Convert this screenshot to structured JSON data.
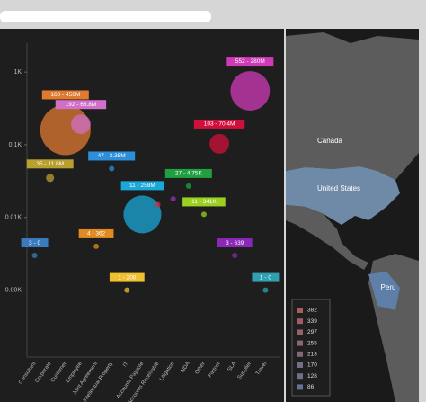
{
  "chart_data": {
    "type": "bubble",
    "categories": [
      "Consultant",
      "Corporate",
      "Customer",
      "Employee",
      "Joint Agreement",
      "Intellectual Property",
      "IT",
      "Accounts Payable",
      "Accounts Receivable",
      "Litigation",
      "NDA",
      "Other",
      "Partner",
      "SLA",
      "Supplier",
      "Travel"
    ],
    "values": [
      3,
      35,
      160,
      192,
      4,
      47,
      1,
      11,
      15,
      18,
      27,
      11,
      103,
      3,
      552,
      1
    ],
    "sizes": [
      0,
      11800000,
      456000000,
      68800000,
      362,
      3350000,
      200,
      258000000,
      500000,
      500000,
      4750,
      341000,
      70400000,
      639,
      280000000,
      0
    ],
    "value_labels": [
      "3 - 0",
      "35 - 11.8M",
      "160 - 456M",
      "192 - 68.8M",
      "4 - 362",
      "47 - 3.35M",
      "1 - 200",
      "11 - 258M",
      null,
      null,
      "27 - 4.75K",
      "11 - 341K",
      "103 - 70.4M",
      "3 - 639",
      "552 - 280M",
      "1 - 0"
    ],
    "colors": [
      "#3a7bbf",
      "#b8a030",
      "#e07a30",
      "#d070c8",
      "#e08a20",
      "#2e8fd8",
      "#f0c030",
      "#1aa8d8",
      "#d03040",
      "#9a30b0",
      "#20a040",
      "#9ad020",
      "#d0103a",
      "#8a28b8",
      "#d03ab8",
      "#30a0b0"
    ],
    "log_y": true,
    "ylim": [
      0.12,
      2500
    ],
    "yticks": [
      {
        "value": 1,
        "label": "0.00K"
      },
      {
        "value": 10,
        "label": "0.01K"
      },
      {
        "value": 100,
        "label": "0.1K"
      },
      {
        "value": 1000,
        "label": "1K"
      }
    ]
  },
  "map": {
    "labels": [
      "Canada",
      "United States",
      "Peru"
    ],
    "legend": [
      {
        "value": 382,
        "color": "#a85c5c"
      },
      {
        "value": 339,
        "color": "#9e5f63"
      },
      {
        "value": 297,
        "color": "#94626b"
      },
      {
        "value": 255,
        "color": "#8a6672"
      },
      {
        "value": 213,
        "color": "#806a7a"
      },
      {
        "value": 170,
        "color": "#766d82"
      },
      {
        "value": 128,
        "color": "#6c7189"
      },
      {
        "value": 86,
        "color": "#627491"
      }
    ]
  }
}
